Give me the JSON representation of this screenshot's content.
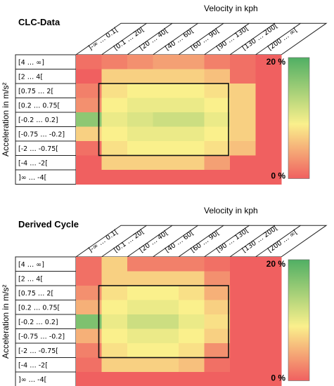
{
  "chart_data": [
    {
      "type": "heatmap",
      "title": "CLC-Data",
      "xlabel": "Velocity in kph",
      "ylabel": "Acceleration in m/s²",
      "x_categories": [
        "]-∞ … 0.1[",
        "[0.1 … 20[",
        "[20 … 40[",
        "[40 … 60[",
        "[60 … 90[",
        "[90 … 130[",
        "[130 … 200[",
        "[200 … ∞["
      ],
      "y_categories": [
        "[4 … ∞]",
        "[2 … 4[",
        "[0.75 … 2[",
        "[0.2 … 0.75[",
        "[-0.2 … 0.2]",
        "[-0.75 … -0.2]",
        "[-2 … -0.75[",
        "[-4 … -2[",
        "]∞ … -4["
      ],
      "values": [
        [
          1,
          2,
          3,
          4,
          4,
          2,
          1,
          0
        ],
        [
          0,
          7,
          7,
          7,
          7,
          6,
          1,
          0
        ],
        [
          2,
          8,
          9,
          9,
          9,
          8,
          7,
          0
        ],
        [
          3,
          9,
          10,
          10,
          10,
          9,
          7,
          0
        ],
        [
          16,
          10,
          11,
          12,
          12,
          10,
          7,
          0
        ],
        [
          7,
          9,
          10,
          10,
          10,
          9,
          7,
          0
        ],
        [
          1,
          8,
          9,
          9,
          9,
          8,
          6,
          0
        ],
        [
          0,
          7,
          7,
          7,
          7,
          4,
          0,
          0
        ],
        [
          0,
          0,
          0,
          0,
          0,
          0,
          0,
          0
        ]
      ],
      "value_unit": "%",
      "color_range": [
        0,
        20
      ],
      "colorbar_labels": [
        "20 %",
        "0 %"
      ]
    },
    {
      "type": "heatmap",
      "title": "Derived Cycle",
      "xlabel": "Velocity in kph",
      "ylabel": "Acceleration in m/s²",
      "x_categories": [
        "]-∞ … 0.1[",
        "[0.1 … 20[",
        "[20 … 40[",
        "[40 … 60[",
        "[60 … 90[",
        "[90 … 130[",
        "[130 … 200[",
        "[200 … ∞["
      ],
      "y_categories": [
        "[4 … ∞]",
        "[2 … 4[",
        "[0.75 … 2[",
        "[0.2 … 0.75[",
        "[-0.2 … 0.2]",
        "[-0.75 … -0.2]",
        "[-2 … -0.75[",
        "[-4 … -2[",
        "]∞ … -4["
      ],
      "values": [
        [
          1,
          7,
          2,
          2,
          2,
          1,
          0,
          0
        ],
        [
          1,
          7,
          7,
          7,
          7,
          3,
          0,
          0
        ],
        [
          3,
          8,
          9,
          9,
          8,
          5,
          0,
          0
        ],
        [
          5,
          9,
          10,
          10,
          9,
          7,
          0,
          0
        ],
        [
          17,
          10,
          12,
          12,
          10,
          8,
          0,
          0
        ],
        [
          5,
          9,
          10,
          10,
          9,
          7,
          0,
          0
        ],
        [
          2,
          8,
          9,
          9,
          8,
          3,
          0,
          0
        ],
        [
          1,
          7,
          7,
          7,
          6,
          1,
          0,
          0
        ],
        [
          0,
          0,
          0,
          0,
          0,
          0,
          0,
          0
        ]
      ],
      "value_unit": "%",
      "color_range": [
        0,
        20
      ],
      "colorbar_labels": [
        "20 %",
        "0 %"
      ]
    }
  ]
}
